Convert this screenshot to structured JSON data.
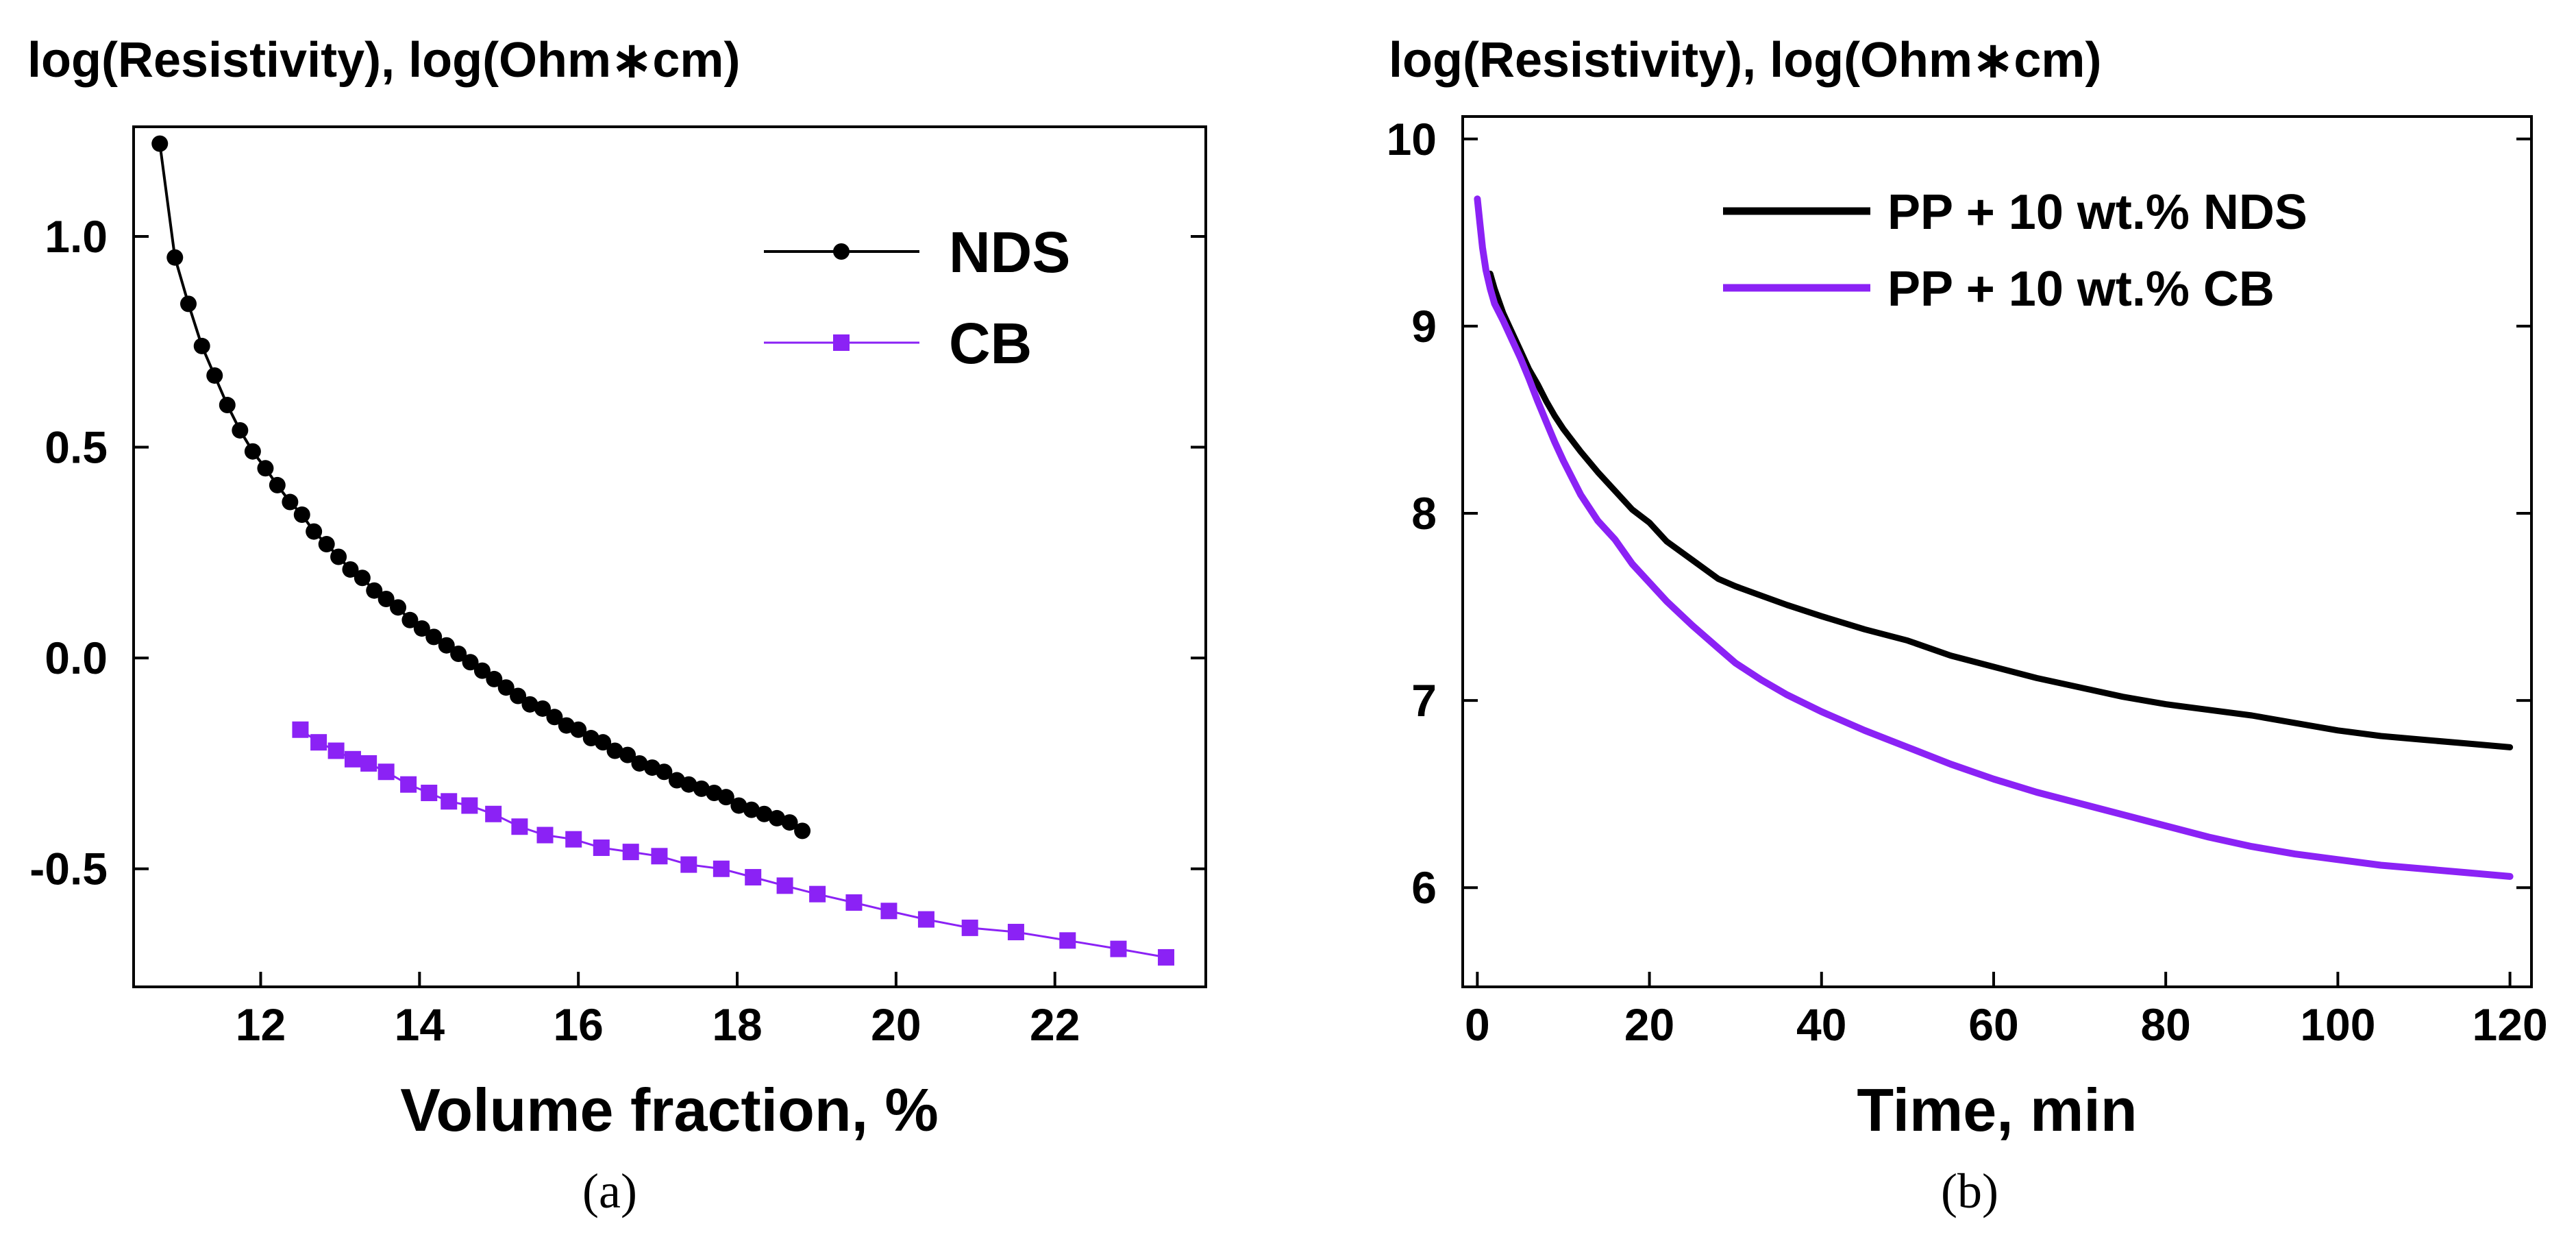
{
  "colors": {
    "nds": "#000000",
    "cb": "#8b22f5",
    "axis": "#000000"
  },
  "chart_data": [
    {
      "type": "line",
      "panel_caption": "(a)",
      "title": "",
      "ylabel": "log(Resistivity), log(Ohm∗cm)",
      "xlabel": "Volume fraction, %",
      "xlim": [
        10.4,
        23.9
      ],
      "ylim": [
        -0.78,
        1.26
      ],
      "xticks": [
        12,
        14,
        16,
        18,
        20,
        22
      ],
      "xtick_labels": [
        "12",
        "14",
        "16",
        "18",
        "20",
        "22"
      ],
      "yticks": [
        -0.5,
        0.0,
        0.5,
        1.0
      ],
      "ytick_labels": [
        "-0.5",
        "0.0",
        "0.5",
        "1.0"
      ],
      "legend_position": "top-right",
      "series": [
        {
          "name": "NDS",
          "marker": "circle",
          "x": [
            10.73,
            10.92,
            11.09,
            11.26,
            11.42,
            11.58,
            11.74,
            11.9,
            12.06,
            12.21,
            12.37,
            12.52,
            12.67,
            12.83,
            12.98,
            13.13,
            13.28,
            13.43,
            13.58,
            13.73,
            13.88,
            14.03,
            14.18,
            14.34,
            14.49,
            14.64,
            14.79,
            14.94,
            15.09,
            15.24,
            15.39,
            15.55,
            15.7,
            15.85,
            16.0,
            16.16,
            16.31,
            16.46,
            16.62,
            16.77,
            16.93,
            17.08,
            17.24,
            17.39,
            17.55,
            17.71,
            17.86,
            18.02,
            18.18,
            18.34,
            18.5,
            18.66,
            18.82
          ],
          "values": [
            1.22,
            0.95,
            0.84,
            0.74,
            0.67,
            0.6,
            0.54,
            0.49,
            0.45,
            0.41,
            0.37,
            0.34,
            0.3,
            0.27,
            0.24,
            0.21,
            0.19,
            0.16,
            0.14,
            0.12,
            0.09,
            0.07,
            0.05,
            0.03,
            0.01,
            -0.01,
            -0.03,
            -0.05,
            -0.07,
            -0.09,
            -0.11,
            -0.12,
            -0.14,
            -0.16,
            -0.17,
            -0.19,
            -0.2,
            -0.22,
            -0.23,
            -0.25,
            -0.26,
            -0.27,
            -0.29,
            -0.3,
            -0.31,
            -0.32,
            -0.33,
            -0.35,
            -0.36,
            -0.37,
            -0.38,
            -0.39,
            -0.41
          ]
        },
        {
          "name": "CB",
          "marker": "square",
          "x": [
            12.5,
            12.73,
            12.95,
            13.16,
            13.36,
            13.58,
            13.86,
            14.12,
            14.37,
            14.63,
            14.93,
            15.26,
            15.58,
            15.94,
            16.29,
            16.66,
            17.02,
            17.39,
            17.8,
            18.2,
            18.6,
            19.01,
            19.47,
            19.91,
            20.38,
            20.93,
            21.51,
            22.16,
            22.8,
            23.4
          ],
          "values": [
            -0.17,
            -0.2,
            -0.22,
            -0.24,
            -0.25,
            -0.27,
            -0.3,
            -0.32,
            -0.34,
            -0.35,
            -0.37,
            -0.4,
            -0.42,
            -0.43,
            -0.45,
            -0.46,
            -0.47,
            -0.49,
            -0.5,
            -0.52,
            -0.54,
            -0.56,
            -0.58,
            -0.6,
            -0.62,
            -0.64,
            -0.65,
            -0.67,
            -0.69,
            -0.71
          ]
        }
      ]
    },
    {
      "type": "line",
      "panel_caption": "(b)",
      "title": "",
      "ylabel": "log(Resistivity), log(Ohm∗cm)",
      "xlabel": "Time, min",
      "xlim": [
        -1.7,
        122.5
      ],
      "ylim": [
        5.47,
        10.12
      ],
      "xticks": [
        0,
        20,
        40,
        60,
        80,
        100,
        120
      ],
      "xtick_labels": [
        "0",
        "20",
        "40",
        "60",
        "80",
        "100",
        "120"
      ],
      "yticks": [
        6,
        7,
        8,
        9,
        10
      ],
      "ytick_labels": [
        "6",
        "7",
        "8",
        "9",
        "10"
      ],
      "legend_position": "top-right",
      "series": [
        {
          "name": "PP + 10 wt.% NDS",
          "x": [
            1.5,
            2,
            3,
            4,
            5,
            6,
            7,
            8,
            9,
            10,
            12,
            14,
            16,
            18,
            20,
            22,
            25,
            28,
            30,
            33,
            36,
            40,
            45,
            50,
            55,
            60,
            65,
            70,
            75,
            80,
            85,
            90,
            95,
            100,
            105,
            110,
            115,
            120
          ],
          "values": [
            9.28,
            9.2,
            9.07,
            8.97,
            8.87,
            8.77,
            8.69,
            8.6,
            8.52,
            8.45,
            8.33,
            8.22,
            8.12,
            8.02,
            7.95,
            7.85,
            7.75,
            7.65,
            7.61,
            7.56,
            7.51,
            7.45,
            7.38,
            7.32,
            7.24,
            7.18,
            7.12,
            7.07,
            7.02,
            6.98,
            6.95,
            6.92,
            6.88,
            6.84,
            6.81,
            6.79,
            6.77,
            6.75
          ]
        },
        {
          "name": "PP + 10 wt.% CB",
          "x": [
            0,
            0.3,
            0.6,
            1,
            1.5,
            2,
            3,
            4,
            5,
            6,
            7,
            8,
            9,
            10,
            12,
            14,
            16,
            18,
            20,
            22,
            25,
            28,
            30,
            33,
            36,
            40,
            45,
            50,
            55,
            60,
            65,
            70,
            75,
            80,
            85,
            90,
            95,
            100,
            105,
            110,
            115,
            120
          ],
          "values": [
            9.68,
            9.55,
            9.42,
            9.3,
            9.2,
            9.12,
            9.03,
            8.93,
            8.83,
            8.72,
            8.6,
            8.49,
            8.38,
            8.28,
            8.1,
            7.96,
            7.86,
            7.73,
            7.63,
            7.53,
            7.4,
            7.28,
            7.2,
            7.11,
            7.03,
            6.94,
            6.84,
            6.75,
            6.66,
            6.58,
            6.51,
            6.45,
            6.39,
            6.33,
            6.27,
            6.22,
            6.18,
            6.15,
            6.12,
            6.1,
            6.08,
            6.06
          ]
        }
      ]
    }
  ]
}
